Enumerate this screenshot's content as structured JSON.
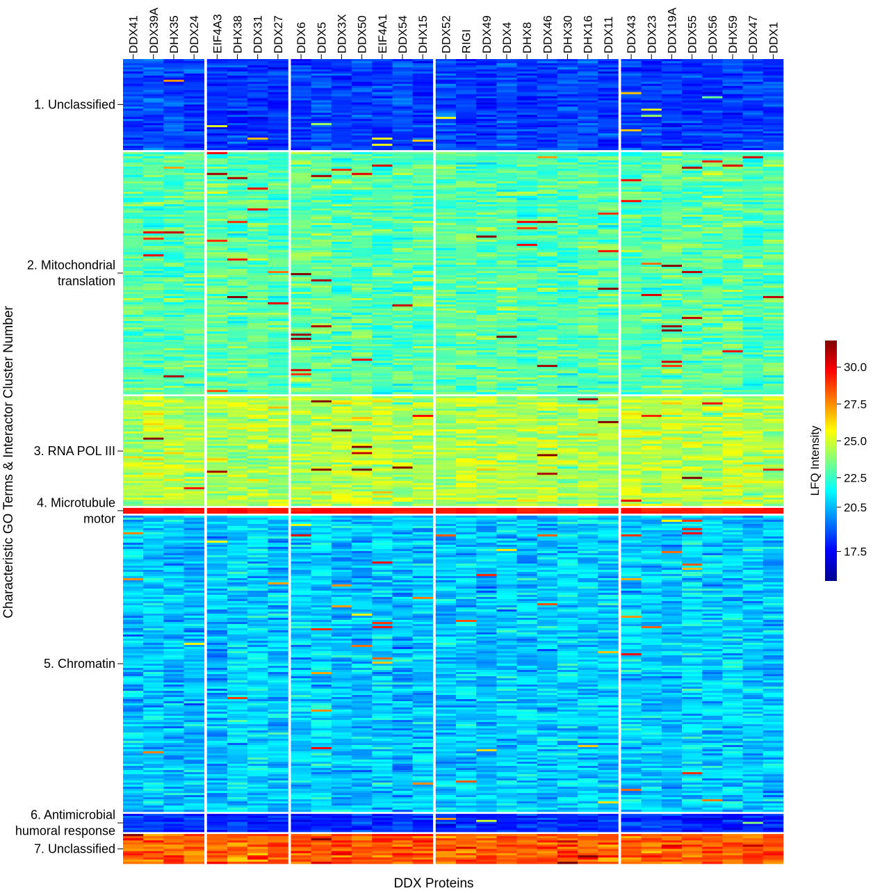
{
  "chart_data": {
    "type": "heatmap",
    "title": "",
    "xlabel": "DDX Proteins",
    "ylabel": "Characteristic GO Terms & Interactor Cluster Number",
    "column_groups": [
      [
        "DDX41",
        "DDX39A",
        "DHX35",
        "DDX24"
      ],
      [
        "EIF4A3",
        "DHX38",
        "DDX31",
        "DDX27"
      ],
      [
        "DDX6",
        "DDX5",
        "DDX3X",
        "DDX50",
        "EIF4A1",
        "DDX54",
        "DHX15"
      ],
      [
        "DDX52",
        "RIGI",
        "DDX49",
        "DDX4",
        "DHX8",
        "DDX46",
        "DHX30",
        "DHX16",
        "DDX11"
      ],
      [
        "DDX43",
        "DDX23",
        "DDX19A",
        "DDX55",
        "DDX56",
        "DHX59",
        "DDX47",
        "DDX1"
      ]
    ],
    "clusters": [
      {
        "label": [
          "1. Unclassified"
        ],
        "approx_mean_lfq": 18.5,
        "relative_size": 131
      },
      {
        "label": [
          "2. Mitochondrial",
          "translation"
        ],
        "approx_mean_lfq": 23.0,
        "relative_size": 349
      },
      {
        "label": [
          "3. RNA POL III"
        ],
        "approx_mean_lfq": 24.5,
        "relative_size": 158
      },
      {
        "label": [
          "4. Microtubule",
          "motor"
        ],
        "approx_mean_lfq": 29.5,
        "relative_size": 8
      },
      {
        "label": [
          "5. Chromatin"
        ],
        "approx_mean_lfq": 20.8,
        "relative_size": 427
      },
      {
        "label": [
          "6. Antimicrobial",
          "humoral response"
        ],
        "approx_mean_lfq": 18.2,
        "relative_size": 26
      },
      {
        "label": [
          "7. Unclassified"
        ],
        "approx_mean_lfq": 28.3,
        "relative_size": 43
      }
    ],
    "colorbar": {
      "label": "LFQ Intensity",
      "colormap": "jet",
      "range": [
        15.5,
        31.8
      ],
      "ticks": [
        "30.0",
        "27.5",
        "25.0",
        "22.5",
        "20.5",
        "17.5"
      ]
    },
    "grid": false
  }
}
